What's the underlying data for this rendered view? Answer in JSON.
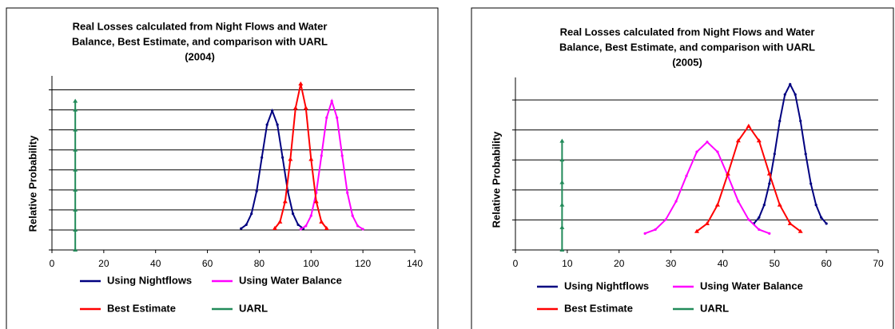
{
  "chart_data": [
    {
      "type": "line",
      "title": [
        "Real Losses calculated from Night Flows and Water",
        "Balance, Best Estimate, and comparison with UARL",
        "(2004)"
      ],
      "y_label": "Relative Probability",
      "xlim": [
        0,
        140
      ],
      "xticks": [
        0,
        20,
        40,
        60,
        80,
        100,
        120,
        140
      ],
      "ylim": [
        0,
        8.7
      ],
      "yticks": [
        0,
        1,
        2,
        3,
        4,
        5,
        6,
        7,
        8
      ],
      "grid": true,
      "legend": "bottom",
      "series": [
        {
          "name": "Using Nightflows",
          "color": "#000080",
          "marker": "dot",
          "x": [
            73,
            75,
            77,
            79,
            81,
            83,
            85,
            87,
            89,
            91,
            93,
            95,
            97
          ],
          "values": [
            1.07,
            1.26,
            1.81,
            2.94,
            4.62,
            6.26,
            6.96,
            6.26,
            4.62,
            2.94,
            1.81,
            1.26,
            1.07
          ]
        },
        {
          "name": "Using Water Balance",
          "color": "#ff00ff",
          "marker": "dot",
          "x": [
            96,
            98,
            100,
            102,
            104,
            106,
            108,
            110,
            112,
            114,
            116,
            118,
            120
          ],
          "values": [
            1.04,
            1.2,
            1.71,
            2.86,
            4.71,
            6.61,
            7.44,
            6.61,
            4.71,
            2.86,
            1.71,
            1.2,
            1.04
          ]
        },
        {
          "name": "Best Estimate",
          "color": "#ff0000",
          "marker": "triangle",
          "x": [
            86,
            88,
            90,
            92,
            94,
            96,
            98,
            100,
            102,
            104,
            106
          ],
          "values": [
            1.08,
            1.4,
            2.42,
            4.53,
            7.09,
            8.3,
            7.09,
            4.53,
            2.42,
            1.4,
            1.08
          ]
        },
        {
          "name": "UARL",
          "color": "#228b5a",
          "marker": "triangle",
          "x": [
            9,
            9,
            9,
            9,
            9,
            9,
            9,
            9,
            9
          ],
          "values": [
            0,
            1,
            2,
            3,
            4,
            5,
            6,
            7,
            7.44
          ]
        }
      ]
    },
    {
      "type": "line",
      "title": [
        "Real Losses calculated from Night Flows and Water",
        "Balance, Best Estimate, and comparison with UARL",
        "(2005)"
      ],
      "y_label": "Relative Probability",
      "xlim": [
        0,
        70
      ],
      "xticks": [
        0,
        10,
        20,
        30,
        40,
        50,
        60,
        70
      ],
      "ylim": [
        0,
        5.75
      ],
      "yticks": [
        0,
        1,
        2,
        3,
        4,
        5
      ],
      "grid": true,
      "legend": "bottom",
      "series": [
        {
          "name": "Using Nightflows",
          "color": "#000080",
          "marker": "dot",
          "x": [
            46,
            47,
            48,
            49,
            50,
            51,
            52,
            53,
            54,
            55,
            56,
            57,
            58,
            59,
            60
          ],
          "values": [
            0.88,
            1.08,
            1.5,
            2.21,
            3.2,
            4.3,
            5.18,
            5.52,
            5.18,
            4.3,
            3.2,
            2.21,
            1.5,
            1.08,
            0.88
          ]
        },
        {
          "name": "Using Water Balance",
          "color": "#ff00ff",
          "marker": "dot",
          "x": [
            25,
            27,
            29,
            31,
            33,
            35,
            37,
            39,
            41,
            43,
            45,
            47,
            49
          ],
          "values": [
            0.55,
            0.68,
            1.01,
            1.62,
            2.47,
            3.27,
            3.6,
            3.27,
            2.47,
            1.62,
            1.01,
            0.68,
            0.55
          ]
        },
        {
          "name": "Best Estimate",
          "color": "#ff0000",
          "marker": "triangle",
          "x": [
            35,
            37,
            39,
            41,
            43,
            45,
            47,
            49,
            51,
            53,
            55
          ],
          "values": [
            0.62,
            0.88,
            1.5,
            2.54,
            3.64,
            4.13,
            3.64,
            2.54,
            1.5,
            0.88,
            0.62
          ]
        },
        {
          "name": "UARL",
          "color": "#228b5a",
          "marker": "triangle",
          "x": [
            9,
            9,
            9,
            9,
            9,
            9
          ],
          "values": [
            0,
            0.75,
            1.5,
            2.25,
            3,
            3.63
          ]
        }
      ]
    }
  ]
}
